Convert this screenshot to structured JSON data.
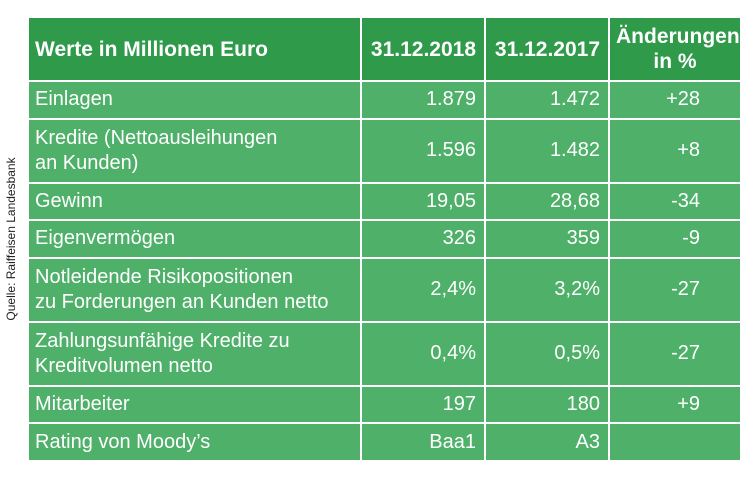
{
  "source": "Quelle: Raiffeisen Landesbank",
  "header": {
    "label": "Werte in Millionen Euro",
    "col2018": "31.12.2018",
    "col2017": "31.12.2017",
    "change_line1": "Änderungen",
    "change_line2": "in %"
  },
  "rows": [
    {
      "label_lines": [
        "Einlagen"
      ],
      "v2018": "1.879",
      "v2017": "1.472",
      "change": "+28"
    },
    {
      "label_lines": [
        "Kredite (Nettoausleihungen",
        "an Kunden)"
      ],
      "v2018": "1.596",
      "v2017": "1.482",
      "change": "+8"
    },
    {
      "label_lines": [
        "Gewinn"
      ],
      "v2018": "19,05",
      "v2017": "28,68",
      "change": "-34"
    },
    {
      "label_lines": [
        "Eigenvermögen"
      ],
      "v2018": "326",
      "v2017": "359",
      "change": "-9"
    },
    {
      "label_lines": [
        "Notleidende Risikopositionen",
        "zu Forderungen an Kunden netto"
      ],
      "v2018": "2,4%",
      "v2017": "3,2%",
      "change": "-27"
    },
    {
      "label_lines": [
        "Zahlungsunfähige Kredite zu",
        "Kreditvolumen netto"
      ],
      "v2018": "0,4%",
      "v2017": "0,5%",
      "change": "-27"
    },
    {
      "label_lines": [
        "Mitarbeiter"
      ],
      "v2018": "197",
      "v2017": "180",
      "change": "+9"
    },
    {
      "label_lines": [
        "Rating von Moody’s"
      ],
      "v2018": "Baa1",
      "v2017": "A3",
      "change": ""
    }
  ],
  "colors": {
    "header_bg": "#2e9a4a",
    "cell_bg": "#4fb06a",
    "text": "#ffffff"
  }
}
